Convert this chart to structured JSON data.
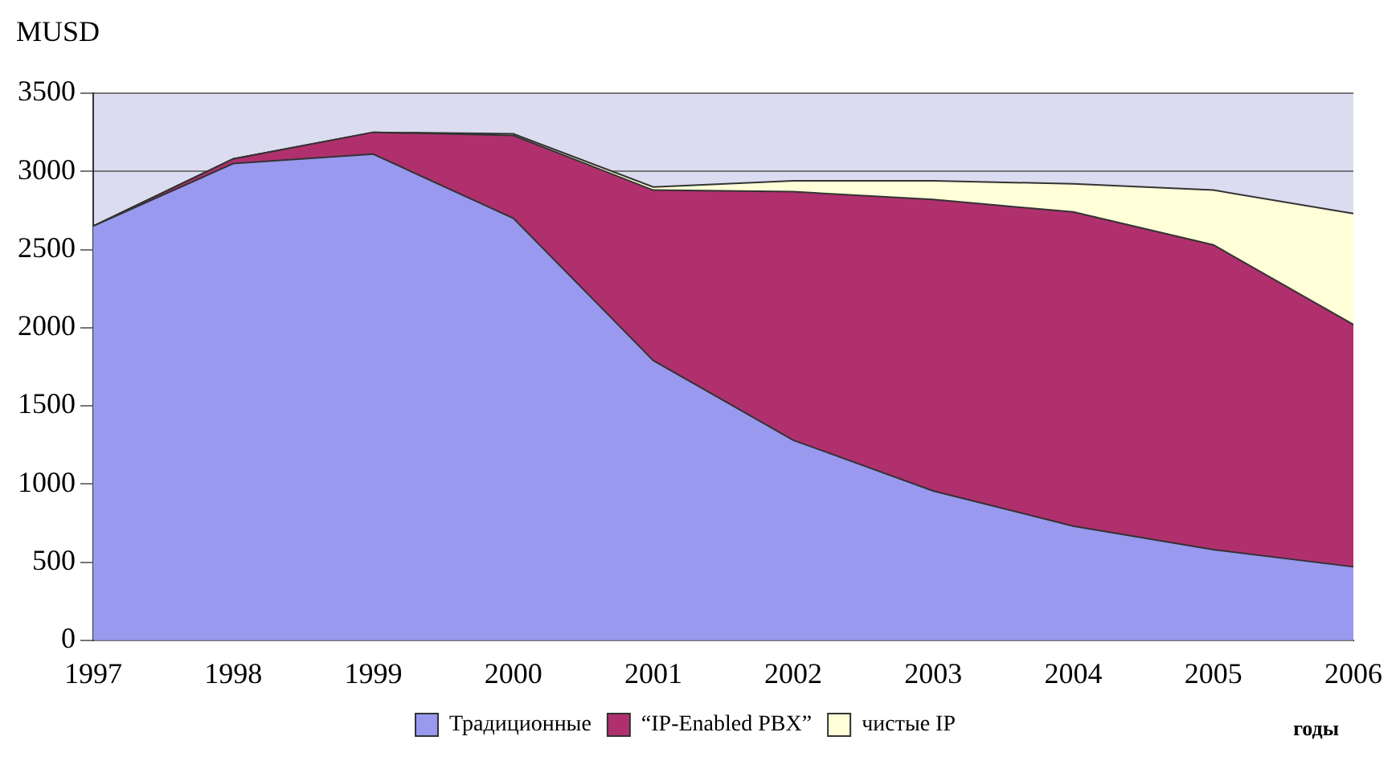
{
  "chart_data": {
    "type": "area",
    "stacked": true,
    "ylabel": "MUSD",
    "xlabel": "годы",
    "categories": [
      "1997",
      "1998",
      "1999",
      "2000",
      "2001",
      "2002",
      "2003",
      "2004",
      "2005",
      "2006"
    ],
    "series": [
      {
        "name": "Традиционные",
        "color": "#9999f0",
        "values": [
          2650,
          3050,
          3110,
          2700,
          1790,
          1280,
          955,
          730,
          580,
          470
        ]
      },
      {
        "name": "“IP-Enabled PBX”",
        "color": "#b0306e",
        "values": [
          0,
          30,
          140,
          530,
          1090,
          1590,
          1865,
          2010,
          1950,
          1550
        ]
      },
      {
        "name": "чистые IP",
        "color": "#ffffd8",
        "values": [
          0,
          0,
          0,
          10,
          20,
          70,
          120,
          180,
          350,
          710
        ]
      }
    ],
    "ylim": [
      0,
      3500
    ],
    "yticks": [
      0,
      500,
      1000,
      1500,
      2000,
      2500,
      3000,
      3500
    ],
    "grid": "y",
    "legend": "bottom"
  }
}
